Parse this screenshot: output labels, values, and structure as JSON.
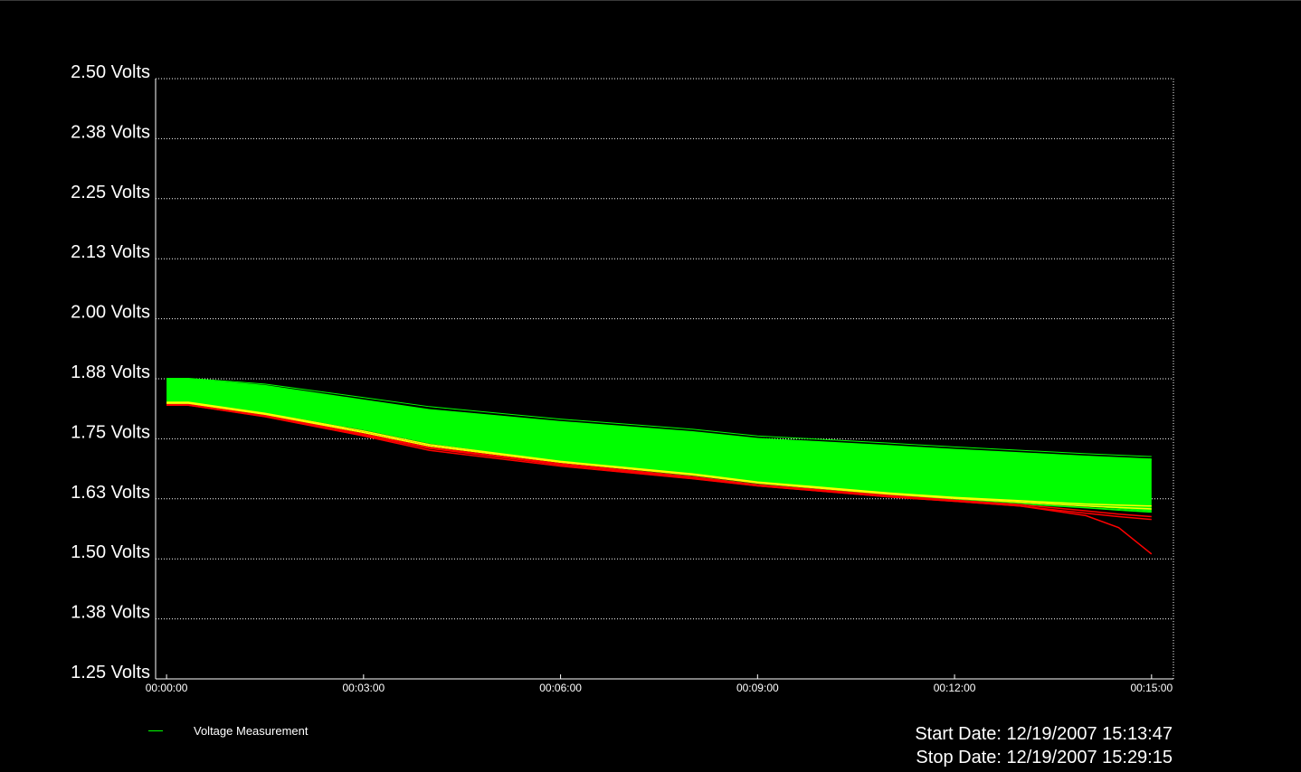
{
  "chart_data": {
    "type": "line",
    "y_tick_labels": [
      "2.50 Volts",
      "2.38 Volts",
      "2.25 Volts",
      "2.13 Volts",
      "2.00 Volts",
      "1.88 Volts",
      "1.75 Volts",
      "1.63 Volts",
      "1.50 Volts",
      "1.38 Volts",
      "1.25 Volts"
    ],
    "y_ticks": [
      2.5,
      2.375,
      2.25,
      2.125,
      2.0,
      1.875,
      1.75,
      1.625,
      1.5,
      1.375,
      1.25
    ],
    "x_tick_labels": [
      "00:00:00",
      "00:03:00",
      "00:06:00",
      "00:09:00",
      "00:12:00",
      "00:15:00"
    ],
    "x_ticks": [
      "00:00:00",
      "00:03:00",
      "00:06:00",
      "00:09:00",
      "00:12:00",
      "00:15:00"
    ],
    "ylim": [
      1.25,
      2.5
    ],
    "xlim": [
      "-00:00:10",
      "00:15:20"
    ],
    "grid": "horizontal dotted",
    "legend": {
      "label": "Voltage Measurement",
      "color": "#00ff00",
      "placement": "bottom-left"
    },
    "colors": {
      "normal": "#00ff00",
      "warning": "#ffff00",
      "critical": "#ff0000",
      "background": "#000000"
    },
    "x_times": [
      "00:00:00",
      "00:00:20",
      "00:01:30",
      "00:03:00",
      "00:04:00",
      "00:06:00",
      "00:08:00",
      "00:09:00",
      "00:11:00",
      "00:12:00",
      "00:13:00",
      "00:14:00",
      "00:14:30",
      "00:15:00"
    ],
    "band": {
      "upper": [
        1.876,
        1.876,
        1.862,
        1.832,
        1.812,
        1.787,
        1.766,
        1.752,
        1.737,
        1.729,
        1.722,
        1.715,
        1.712,
        1.709
      ],
      "lower": [
        1.826,
        1.826,
        1.804,
        1.768,
        1.74,
        1.702,
        1.678,
        1.66,
        1.637,
        1.628,
        1.62,
        1.61,
        1.605,
        1.6
      ]
    },
    "series": [
      {
        "color": "#00ff00",
        "values": [
          1.876,
          1.876,
          1.864,
          1.836,
          1.817,
          1.791,
          1.77,
          1.756,
          1.741,
          1.733,
          1.726,
          1.719,
          1.716,
          1.713
        ]
      },
      {
        "color": "#00ff00",
        "values": [
          1.874,
          1.874,
          1.86,
          1.83,
          1.81,
          1.785,
          1.764,
          1.75,
          1.735,
          1.727,
          1.72,
          1.713,
          1.71,
          1.706
        ]
      },
      {
        "color": "#00ff00",
        "values": [
          1.826,
          1.826,
          1.803,
          1.766,
          1.738,
          1.703,
          1.677,
          1.66,
          1.637,
          1.627,
          1.619,
          1.61,
          1.605,
          1.6
        ]
      },
      {
        "color": "#00ff00",
        "values": [
          1.823,
          1.823,
          1.8,
          1.76,
          1.732,
          1.698,
          1.672,
          1.655,
          1.633,
          1.624,
          1.616,
          1.607,
          1.603,
          1.598
        ]
      },
      {
        "color": "#00ff00",
        "values": [
          1.82,
          1.82,
          1.796,
          1.756,
          1.726,
          1.693,
          1.667,
          1.652,
          1.63,
          1.622,
          1.614,
          1.606,
          1.601,
          1.597
        ]
      },
      {
        "color": "#ffff00",
        "values": [
          1.826,
          1.826,
          1.803,
          1.766,
          1.738,
          1.703,
          1.677,
          1.66,
          1.637,
          1.628,
          1.621,
          1.614,
          1.612,
          1.61
        ]
      },
      {
        "color": "#ffff00",
        "values": [
          1.824,
          1.824,
          1.801,
          1.763,
          1.735,
          1.701,
          1.675,
          1.658,
          1.635,
          1.626,
          1.618,
          1.61,
          1.607,
          1.604
        ]
      },
      {
        "color": "#ff0000",
        "values": [
          1.821,
          1.821,
          1.798,
          1.76,
          1.732,
          1.698,
          1.671,
          1.654,
          1.632,
          1.622,
          1.613,
          1.6,
          1.593,
          1.588
        ]
      },
      {
        "color": "#ff0000",
        "values": [
          1.82,
          1.82,
          1.797,
          1.758,
          1.73,
          1.696,
          1.669,
          1.652,
          1.629,
          1.62,
          1.61,
          1.595,
          1.588,
          1.582
        ]
      },
      {
        "color": "#ff0000",
        "values": [
          1.82,
          1.82,
          1.796,
          1.756,
          1.726,
          1.693,
          1.667,
          1.652,
          1.629,
          1.62,
          1.61,
          1.59,
          1.565,
          1.51
        ]
      }
    ]
  },
  "footer": {
    "start_date": "Start Date: 12/19/2007 15:13:47",
    "stop_date": "Stop Date: 12/19/2007 15:29:15"
  }
}
